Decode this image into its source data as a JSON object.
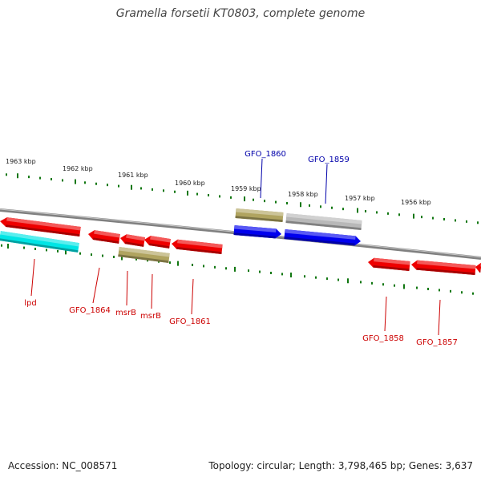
{
  "title": "Gramella forsetii KT0803, complete genome",
  "footer": {
    "accession": "Accession: NC_008571",
    "summary": "Topology: circular; Length: 3,798,465 bp; Genes: 3,637"
  },
  "colors": {
    "backbone": "#808080",
    "tick": "#117711",
    "tick_label": "#222222",
    "reverse_label": "#cc0000",
    "forward_label": "#0000aa",
    "red_gene": "#ee0000",
    "cyan_gene": "#00e5e5",
    "olive_gene": "#b0a460",
    "blue_gene": "#0000ee",
    "grey_gene": "#b8b8b8"
  },
  "ticks": [
    "1963 kbp",
    "1962 kbp",
    "1961 kbp",
    "1960 kbp",
    "1959 kbp",
    "1958 kbp",
    "1957 kbp",
    "1956 kbp"
  ],
  "forward_labels": [
    "GFO_1860",
    "GFO_1859"
  ],
  "reverse_labels": [
    "lpd",
    "GFO_1864",
    "msrB",
    "msrB",
    "GFO_1861",
    "GFO_1858",
    "GFO_1857"
  ]
}
